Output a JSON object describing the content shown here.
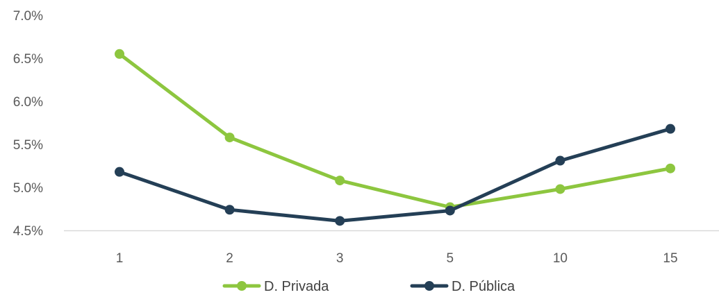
{
  "chart_data": {
    "type": "line",
    "title": "",
    "xlabel": "",
    "ylabel": "",
    "categories": [
      "1",
      "2",
      "3",
      "5",
      "10",
      "15"
    ],
    "ylim": [
      4.5,
      7.0
    ],
    "y_ticks": [
      4.5,
      5.0,
      5.5,
      6.0,
      6.5,
      7.0
    ],
    "y_tick_labels": [
      "4.5%",
      "5.0%",
      "5.5%",
      "6.0%",
      "6.5%",
      "7.0%"
    ],
    "grid": false,
    "legend_position": "bottom",
    "series": [
      {
        "name": "D. Privada",
        "color": "#8DC63F",
        "values": [
          6.55,
          5.58,
          5.08,
          4.77,
          4.98,
          5.22
        ]
      },
      {
        "name": "D. Pública",
        "color": "#243F56",
        "values": [
          5.18,
          4.74,
          4.61,
          4.73,
          5.31,
          5.68
        ]
      }
    ]
  }
}
